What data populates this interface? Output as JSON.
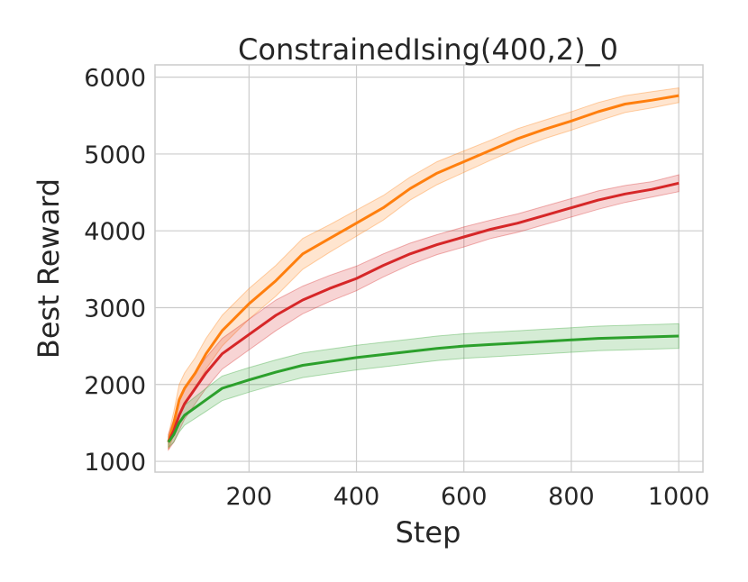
{
  "chart_data": {
    "type": "line",
    "title": "ConstrainedIsing(400,2)_0",
    "xlabel": "Step",
    "ylabel": "Best Reward",
    "xlim": [
      25,
      1045
    ],
    "ylim": [
      860,
      6160
    ],
    "xticks": [
      200,
      400,
      600,
      800,
      1000
    ],
    "yticks": [
      1000,
      2000,
      3000,
      4000,
      5000,
      6000
    ],
    "grid": true,
    "legend": "none",
    "series": [
      {
        "color": "#ff7f0e",
        "x": [
          50,
          60,
          70,
          80,
          100,
          120,
          150,
          200,
          250,
          300,
          350,
          400,
          450,
          500,
          550,
          600,
          650,
          700,
          750,
          800,
          850,
          900,
          950,
          1000
        ],
        "y": [
          1250,
          1500,
          1800,
          1950,
          2150,
          2400,
          2700,
          3050,
          3350,
          3700,
          3900,
          4100,
          4300,
          4550,
          4750,
          4900,
          5050,
          5200,
          5320,
          5430,
          5550,
          5650,
          5700,
          5760
        ],
        "lower": [
          1150,
          1350,
          1600,
          1750,
          1950,
          2200,
          2500,
          2850,
          3150,
          3500,
          3720,
          3930,
          4140,
          4400,
          4600,
          4760,
          4920,
          5070,
          5200,
          5310,
          5430,
          5540,
          5600,
          5670
        ],
        "upper": [
          1350,
          1650,
          2000,
          2150,
          2350,
          2600,
          2900,
          3250,
          3550,
          3900,
          4080,
          4270,
          4460,
          4700,
          4900,
          5040,
          5180,
          5330,
          5440,
          5550,
          5670,
          5760,
          5810,
          5860
        ]
      },
      {
        "color": "#d62728",
        "x": [
          50,
          60,
          70,
          80,
          100,
          120,
          150,
          200,
          250,
          300,
          350,
          400,
          450,
          500,
          550,
          600,
          650,
          700,
          750,
          800,
          850,
          900,
          950,
          1000
        ],
        "y": [
          1250,
          1400,
          1600,
          1750,
          1950,
          2150,
          2400,
          2650,
          2900,
          3100,
          3250,
          3380,
          3550,
          3700,
          3820,
          3920,
          4020,
          4100,
          4200,
          4300,
          4400,
          4480,
          4540,
          4620
        ],
        "lower": [
          1150,
          1250,
          1400,
          1550,
          1750,
          1950,
          2200,
          2450,
          2700,
          2920,
          3080,
          3220,
          3400,
          3560,
          3690,
          3790,
          3900,
          3980,
          4080,
          4180,
          4280,
          4370,
          4440,
          4510
        ],
        "upper": [
          1350,
          1550,
          1800,
          1950,
          2150,
          2350,
          2600,
          2850,
          3100,
          3280,
          3420,
          3540,
          3700,
          3840,
          3950,
          4050,
          4140,
          4220,
          4320,
          4420,
          4520,
          4590,
          4640,
          4730
        ]
      },
      {
        "color": "#2ca02c",
        "x": [
          50,
          60,
          70,
          80,
          100,
          120,
          150,
          200,
          250,
          300,
          350,
          400,
          450,
          500,
          550,
          600,
          650,
          700,
          750,
          800,
          850,
          900,
          950,
          1000
        ],
        "y": [
          1250,
          1350,
          1500,
          1600,
          1700,
          1800,
          1950,
          2060,
          2160,
          2250,
          2300,
          2350,
          2390,
          2430,
          2470,
          2500,
          2520,
          2540,
          2560,
          2580,
          2600,
          2610,
          2620,
          2630
        ],
        "lower": [
          1180,
          1250,
          1380,
          1470,
          1560,
          1650,
          1790,
          1900,
          2000,
          2090,
          2140,
          2190,
          2230,
          2270,
          2310,
          2340,
          2360,
          2380,
          2400,
          2420,
          2440,
          2450,
          2460,
          2470
        ],
        "upper": [
          1320,
          1450,
          1620,
          1730,
          1840,
          1950,
          2110,
          2220,
          2320,
          2410,
          2460,
          2510,
          2550,
          2590,
          2630,
          2660,
          2680,
          2700,
          2720,
          2740,
          2760,
          2770,
          2780,
          2790
        ]
      }
    ]
  }
}
